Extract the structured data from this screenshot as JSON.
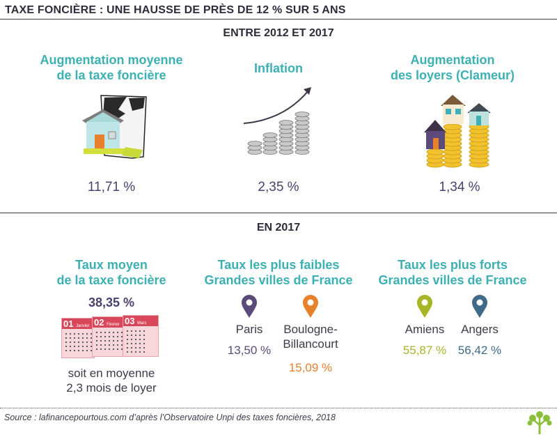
{
  "title": "TAXE FONCIÈRE : UNE HAUSSE DE PRÈS DE 12 % SUR 5 ANS",
  "section1": {
    "heading": "ENTRE 2012 ET 2017",
    "items": [
      {
        "label_line1": "Augmentation moyenne",
        "label_line2": "de la taxe foncière",
        "value": "11,71 %"
      },
      {
        "label_line1": "Inflation",
        "label_line2": "",
        "value": "2,35 %"
      },
      {
        "label_line1": "Augmentation",
        "label_line2": "des loyers (Clameur)",
        "value": "1,34 %"
      }
    ]
  },
  "section2": {
    "heading": "EN 2017",
    "taux_moyen": {
      "label_line1": "Taux moyen",
      "label_line2": "de la taxe foncière",
      "value": "38,35 %",
      "note_line1": "soit en moyenne",
      "note_line2": "2,3 mois de loyer",
      "calendar": [
        {
          "num": "01",
          "month": "Janvier"
        },
        {
          "num": "02",
          "month": "Février"
        },
        {
          "num": "03",
          "month": "Mars"
        }
      ]
    },
    "lowest": {
      "label_line1": "Taux les plus faibles",
      "label_line2": "Grandes villes de France",
      "cities": [
        {
          "name_line1": "Paris",
          "name_line2": "",
          "value": "13,50 %",
          "color": "#5a4a7a"
        },
        {
          "name_line1": "Boulogne-",
          "name_line2": "Billancourt",
          "value": "15,09 %",
          "color": "#e8812b"
        }
      ]
    },
    "highest": {
      "label_line1": "Taux les plus forts",
      "label_line2": "Grandes villes de France",
      "cities": [
        {
          "name_line1": "Amiens",
          "name_line2": "",
          "value": "55,87 %",
          "color": "#a8b526"
        },
        {
          "name_line1": "Angers",
          "name_line2": "",
          "value": "56,42 %",
          "color": "#3f6a8a"
        }
      ]
    }
  },
  "source": "Source : lafinancepourtous.com d’après l’Observatoire Unpi des taxes foncières, 2018",
  "colors": {
    "teal": "#3cb0b3",
    "purple": "#4b3f6e",
    "orange": "#e8812b",
    "olive": "#a8b526",
    "slate": "#3f6a8a",
    "calendar_red": "#d9485a"
  },
  "icons": [
    "house-torn-paper-icon",
    "coin-stacks-arrow-icon",
    "houses-on-coins-icon",
    "calendar-icon",
    "map-pin-icon",
    "tree-logo-icon"
  ]
}
